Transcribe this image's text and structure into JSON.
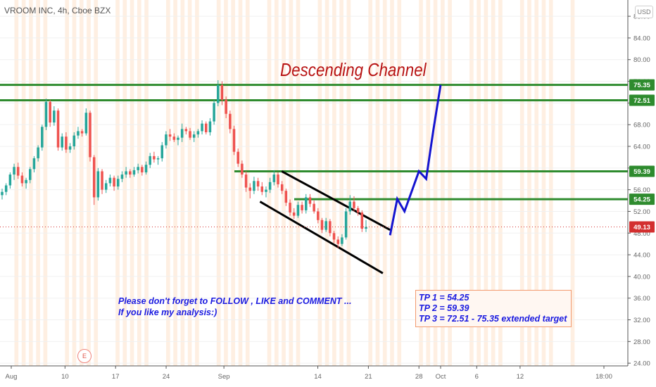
{
  "header": {
    "symbol_title": "VROOM INC, 4h, Cboe BZX",
    "currency": "USD"
  },
  "annotations": {
    "title": "Descending Channel",
    "note_line1": "Please don't forget  to FOLLOW , LIKE and COMMENT ...",
    "note_line2": "If you like my analysis:)",
    "targets": [
      "TP 1 = 54.25",
      "TP 2 = 59.39",
      "TP 3 = 72.51 - 75.35 extended target"
    ],
    "earnings_marker": "E"
  },
  "colors": {
    "up_candle": "#26a69a",
    "down_candle": "#ef5350",
    "level_line": "#2e8b2e",
    "projection": "#1414d0",
    "channel": "#000000",
    "title": "#b81414",
    "note": "#1a1ae0",
    "last_price_tag": "#d32f2f",
    "session_band": "#fde7d3"
  },
  "chart_data": {
    "type": "candlestick",
    "title": "Descending Channel",
    "x_ticks": [
      "Aug",
      "10",
      "17",
      "24",
      "Sep",
      "14",
      "21",
      "28",
      "Oct",
      "6",
      "12",
      "18:00"
    ],
    "y_ticks": [
      24,
      28,
      32,
      36,
      40,
      44,
      48,
      52,
      56,
      60,
      64,
      68,
      72,
      76,
      80,
      84,
      88
    ],
    "ylim": [
      23.5,
      91
    ],
    "last_price": 49.13,
    "levels": [
      75.35,
      72.51,
      59.39,
      54.25
    ],
    "candles_ohlc": [
      [
        55.0,
        56.2,
        54.2,
        55.6
      ],
      [
        55.6,
        57.2,
        55.0,
        56.8
      ],
      [
        56.8,
        59.2,
        56.2,
        58.8
      ],
      [
        58.8,
        60.8,
        57.8,
        60.2
      ],
      [
        60.2,
        61.0,
        58.0,
        58.6
      ],
      [
        58.6,
        59.2,
        56.6,
        57.2
      ],
      [
        57.2,
        58.2,
        56.2,
        57.8
      ],
      [
        57.8,
        60.2,
        57.2,
        59.8
      ],
      [
        59.8,
        62.2,
        59.2,
        61.8
      ],
      [
        61.8,
        64.2,
        61.2,
        63.8
      ],
      [
        63.8,
        68.0,
        63.2,
        67.6
      ],
      [
        67.6,
        72.8,
        67.0,
        72.2
      ],
      [
        72.2,
        72.6,
        67.6,
        68.4
      ],
      [
        68.4,
        71.4,
        67.8,
        70.6
      ],
      [
        70.6,
        71.0,
        63.2,
        63.8
      ],
      [
        63.8,
        66.4,
        63.2,
        65.8
      ],
      [
        65.8,
        66.6,
        62.8,
        63.4
      ],
      [
        63.4,
        64.6,
        62.8,
        64.0
      ],
      [
        64.0,
        66.6,
        63.4,
        66.0
      ],
      [
        66.0,
        67.6,
        65.4,
        66.8
      ],
      [
        66.8,
        67.2,
        65.8,
        66.4
      ],
      [
        66.4,
        71.0,
        66.0,
        70.2
      ],
      [
        70.2,
        70.6,
        61.2,
        62.0
      ],
      [
        62.0,
        62.4,
        53.2,
        54.6
      ],
      [
        54.6,
        60.0,
        54.0,
        59.4
      ],
      [
        59.4,
        59.8,
        55.2,
        56.0
      ],
      [
        56.0,
        57.8,
        55.4,
        57.2
      ],
      [
        57.2,
        58.8,
        56.6,
        58.2
      ],
      [
        58.2,
        58.6,
        55.8,
        56.6
      ],
      [
        56.6,
        58.6,
        56.0,
        58.0
      ],
      [
        58.0,
        59.4,
        57.4,
        58.8
      ],
      [
        58.8,
        60.2,
        58.2,
        59.4
      ],
      [
        59.4,
        59.8,
        58.2,
        58.8
      ],
      [
        58.8,
        60.2,
        58.4,
        59.6
      ],
      [
        59.6,
        60.8,
        59.0,
        60.2
      ],
      [
        60.2,
        60.6,
        58.6,
        59.2
      ],
      [
        59.2,
        61.2,
        58.8,
        60.6
      ],
      [
        60.6,
        62.8,
        60.0,
        62.2
      ],
      [
        62.2,
        63.0,
        61.0,
        61.6
      ],
      [
        61.6,
        62.2,
        60.6,
        61.8
      ],
      [
        61.8,
        64.8,
        61.2,
        64.2
      ],
      [
        64.2,
        66.8,
        63.6,
        66.2
      ],
      [
        66.2,
        67.2,
        65.0,
        65.8
      ],
      [
        65.8,
        66.4,
        64.8,
        65.2
      ],
      [
        65.2,
        66.0,
        64.2,
        65.6
      ],
      [
        65.6,
        68.2,
        64.8,
        67.2
      ],
      [
        67.2,
        67.6,
        66.2,
        66.8
      ],
      [
        66.8,
        67.4,
        65.2,
        65.6
      ],
      [
        65.6,
        66.8,
        64.8,
        66.2
      ],
      [
        66.2,
        67.2,
        65.6,
        66.8
      ],
      [
        66.8,
        68.8,
        66.2,
        68.2
      ],
      [
        68.2,
        68.6,
        66.2,
        66.6
      ],
      [
        66.6,
        69.2,
        66.0,
        68.6
      ],
      [
        68.6,
        72.6,
        68.0,
        72.0
      ],
      [
        72.0,
        76.2,
        71.4,
        75.3
      ],
      [
        75.3,
        76.0,
        71.6,
        72.6
      ],
      [
        72.6,
        73.2,
        69.2,
        70.0
      ],
      [
        70.0,
        70.6,
        66.4,
        67.2
      ],
      [
        67.2,
        67.8,
        62.4,
        63.0
      ],
      [
        63.0,
        63.6,
        60.2,
        60.8
      ],
      [
        60.8,
        61.4,
        58.2,
        58.8
      ],
      [
        58.8,
        59.4,
        55.6,
        56.4
      ],
      [
        56.4,
        57.2,
        54.4,
        55.8
      ],
      [
        55.8,
        58.4,
        55.2,
        57.6
      ],
      [
        57.6,
        58.2,
        55.8,
        56.6
      ],
      [
        56.6,
        57.4,
        55.0,
        55.6
      ],
      [
        55.6,
        56.6,
        54.6,
        56.0
      ],
      [
        56.0,
        58.2,
        55.4,
        57.4
      ],
      [
        57.4,
        59.6,
        56.8,
        58.8
      ],
      [
        58.8,
        59.2,
        56.4,
        57.0
      ],
      [
        57.0,
        57.6,
        55.2,
        55.8
      ],
      [
        55.8,
        56.2,
        53.0,
        53.6
      ],
      [
        53.6,
        54.2,
        51.2,
        51.8
      ],
      [
        51.8,
        52.6,
        50.6,
        51.2
      ],
      [
        51.2,
        53.8,
        50.8,
        53.2
      ],
      [
        53.2,
        53.8,
        51.6,
        52.2
      ],
      [
        52.2,
        55.2,
        51.6,
        54.6
      ],
      [
        54.6,
        55.2,
        52.8,
        53.4
      ],
      [
        53.4,
        54.0,
        51.6,
        52.0
      ],
      [
        52.0,
        52.6,
        49.8,
        50.4
      ],
      [
        50.4,
        50.8,
        48.0,
        48.6
      ],
      [
        48.6,
        50.8,
        48.2,
        50.2
      ],
      [
        50.2,
        50.6,
        47.4,
        48.0
      ],
      [
        48.0,
        48.4,
        46.2,
        46.8
      ],
      [
        46.8,
        47.4,
        45.2,
        46.0
      ],
      [
        46.0,
        47.8,
        45.6,
        47.2
      ],
      [
        47.2,
        52.6,
        46.8,
        52.0
      ],
      [
        52.0,
        55.0,
        51.4,
        53.8
      ],
      [
        53.8,
        54.8,
        52.0,
        52.6
      ],
      [
        52.6,
        53.0,
        51.2,
        51.8
      ],
      [
        51.8,
        52.2,
        48.2,
        48.8
      ],
      [
        48.8,
        50.4,
        48.2,
        49.13
      ]
    ],
    "projection_path": [
      [
        "2020-09-24",
        47.6
      ],
      [
        "2020-09-25",
        54.3
      ],
      [
        "2020-09-26",
        52.0
      ],
      [
        "2020-09-28",
        59.4
      ],
      [
        "2020-09-29",
        58.0
      ],
      [
        "2020-09-30",
        67.0
      ],
      [
        "2020-10-01",
        75.35
      ]
    ],
    "channel_lines": [
      [
        [
          "2020-09-09",
          59.4
        ],
        [
          "2020-09-24",
          48.6
        ]
      ],
      [
        [
          "2020-09-06",
          53.8
        ],
        [
          "2020-09-23",
          40.6
        ]
      ]
    ]
  }
}
